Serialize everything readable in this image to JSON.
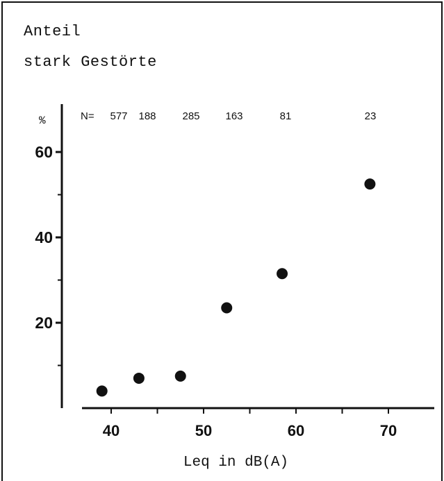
{
  "chart_data": {
    "type": "scatter",
    "title_lines": [
      "Anteil",
      "stark Gestörte"
    ],
    "y_unit": "%",
    "xlabel": "Leq in dB(A)",
    "n_prefix": "N=",
    "xlim": [
      35,
      75
    ],
    "ylim": [
      0,
      66
    ],
    "x_ticks": [
      40,
      45,
      50,
      55,
      60,
      65,
      70
    ],
    "x_tick_labels": [
      "40",
      "",
      "50",
      "",
      "60",
      "",
      "70"
    ],
    "y_ticks": [
      20,
      40,
      60
    ],
    "y_minor_ticks": [
      10,
      30,
      50
    ],
    "points": [
      {
        "x": 39,
        "y": 4,
        "n": "577"
      },
      {
        "x": 43,
        "y": 7,
        "n": "188"
      },
      {
        "x": 47.5,
        "y": 7.5,
        "n": "285"
      },
      {
        "x": 52.5,
        "y": 23.5,
        "n": "163"
      },
      {
        "x": 58.5,
        "y": 31.5,
        "n": "81"
      },
      {
        "x": 68,
        "y": 52.5,
        "n": "23"
      }
    ]
  }
}
